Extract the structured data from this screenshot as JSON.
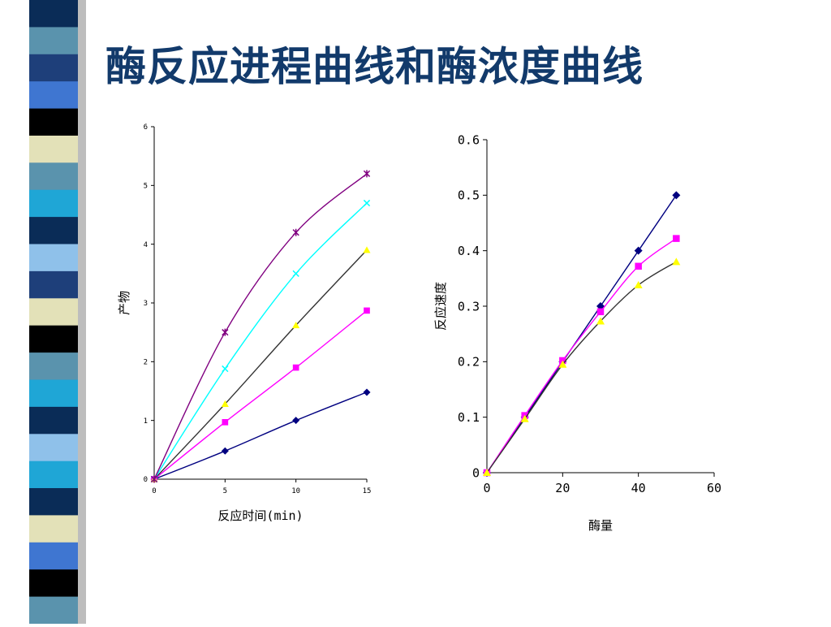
{
  "slide": {
    "title": "酶反应进程曲线和酶浓度曲线",
    "colors": {
      "title": "#123a6b",
      "background": "#ffffff"
    },
    "sidebar_stripes": [
      "#0a2c57",
      "#5a93ad",
      "#1e3f7a",
      "#3f76d1",
      "#000000",
      "#e3e1b8",
      "#5a93ad",
      "#1fa6d6",
      "#0a2c57",
      "#8fc1ea",
      "#1e3f7a",
      "#e3e1b8",
      "#000000",
      "#5a93ad",
      "#1fa6d6",
      "#0a2c57",
      "#8fc1ea",
      "#1fa6d6",
      "#0a2c57",
      "#e3e1b8",
      "#3f76d1",
      "#000000",
      "#5a93ad"
    ]
  },
  "chart_data": [
    {
      "type": "line",
      "xlabel": "反应时间(min)",
      "ylabel": "产物",
      "xlim": [
        0,
        15
      ],
      "ylim": [
        0,
        6
      ],
      "xticks": [
        0,
        5,
        10,
        15
      ],
      "yticks": [
        0,
        1,
        2,
        3,
        4,
        5,
        6
      ],
      "grid": false,
      "legend": "none",
      "series": [
        {
          "color": "#000080",
          "marker": "diamond",
          "x": [
            0,
            5,
            10,
            15
          ],
          "y": [
            0,
            0.48,
            1.0,
            1.48
          ]
        },
        {
          "color": "#ff00ff",
          "marker": "square",
          "x": [
            0,
            5,
            10,
            15
          ],
          "y": [
            0,
            0.97,
            1.9,
            2.87
          ]
        },
        {
          "color": "#ffff00",
          "line_color": "#333333",
          "marker": "triangle",
          "x": [
            0,
            5,
            10,
            15
          ],
          "y": [
            0,
            1.28,
            2.62,
            3.9
          ]
        },
        {
          "color": "#00ffff",
          "marker": "x",
          "x": [
            0,
            5,
            10,
            15
          ],
          "y": [
            0,
            1.88,
            3.5,
            4.7
          ]
        },
        {
          "color": "#800080",
          "marker": "star",
          "x": [
            0,
            5,
            10,
            15
          ],
          "y": [
            0,
            2.5,
            4.2,
            5.2
          ]
        }
      ]
    },
    {
      "type": "line",
      "xlabel": "酶量",
      "ylabel": "反应速度",
      "xlim": [
        0,
        60
      ],
      "ylim": [
        0,
        0.6
      ],
      "xticks": [
        0,
        20,
        40,
        60
      ],
      "yticks": [
        0,
        0.1,
        0.2,
        0.3,
        0.4,
        0.5,
        0.6
      ],
      "ytick_labels": [
        "0",
        "0.1",
        "0.2",
        "0.3",
        "0.4",
        "0.5",
        "0.6"
      ],
      "grid": false,
      "legend": "none",
      "series": [
        {
          "color": "#000080",
          "marker": "diamond",
          "x": [
            0,
            10,
            20,
            30,
            40,
            50
          ],
          "y": [
            0,
            0.1,
            0.2,
            0.3,
            0.4,
            0.5
          ]
        },
        {
          "color": "#ff00ff",
          "marker": "square",
          "x": [
            0,
            10,
            20,
            30,
            40,
            50
          ],
          "y": [
            0,
            0.103,
            0.202,
            0.29,
            0.372,
            0.422
          ]
        },
        {
          "color": "#ffff00",
          "line_color": "#333333",
          "marker": "triangle",
          "x": [
            0,
            10,
            20,
            30,
            40,
            50
          ],
          "y": [
            0,
            0.097,
            0.195,
            0.273,
            0.338,
            0.38
          ]
        }
      ]
    }
  ]
}
